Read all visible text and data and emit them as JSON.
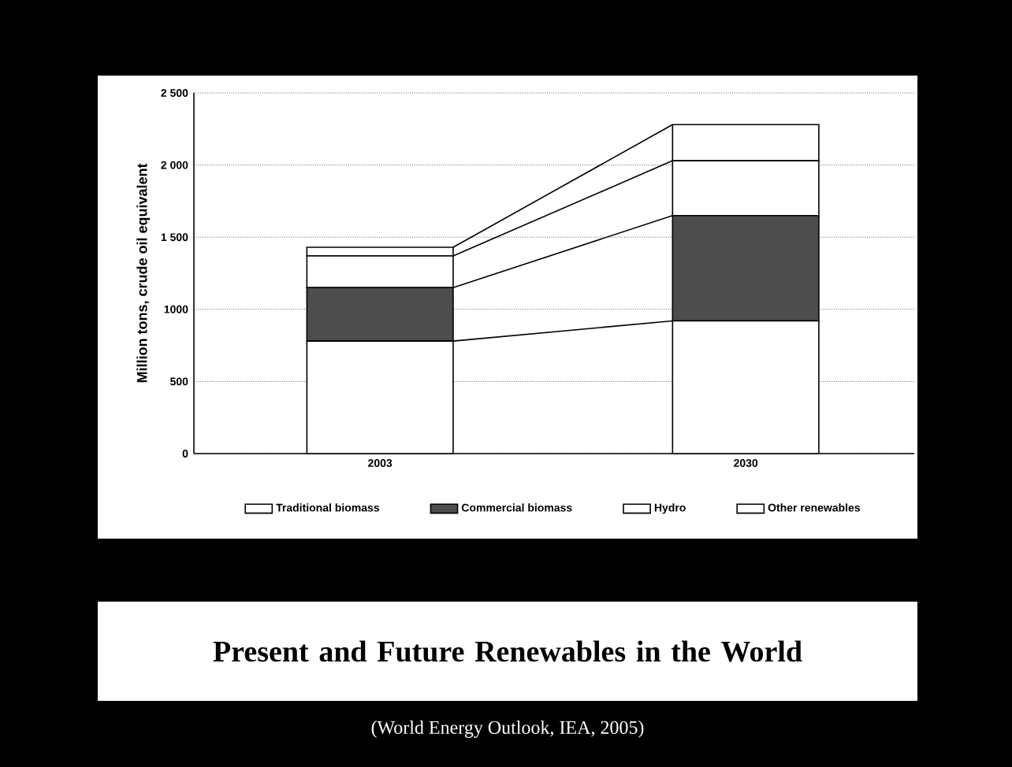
{
  "chart_data": {
    "type": "bar",
    "stacked": true,
    "title": "Present and Future Renewables in the World",
    "ylabel": "Million tons, crude oil equivalent",
    "annotations": [
      "(World Energy Outlook, IEA, 2005)"
    ],
    "categories": [
      "2003",
      "2030"
    ],
    "series": [
      {
        "name": "Traditional biomass",
        "color": "#ffffff",
        "values": [
          780,
          920
        ]
      },
      {
        "name": "Commercial biomass",
        "color": "#4d4d4d",
        "values": [
          370,
          730
        ]
      },
      {
        "name": "Hydro",
        "color": "#ffffff",
        "values": [
          220,
          380
        ]
      },
      {
        "name": "Other renewables",
        "color": "#ffffff",
        "values": [
          60,
          250
        ]
      }
    ],
    "ylim": [
      0,
      2500
    ],
    "yticks": [
      0,
      500,
      1000,
      {
        "value": 1500,
        "label": "1 500"
      },
      {
        "value": 2000,
        "label": "2 000"
      },
      {
        "value": 2500,
        "label": "2 500"
      }
    ],
    "grid": "y",
    "legend": "bottom"
  }
}
